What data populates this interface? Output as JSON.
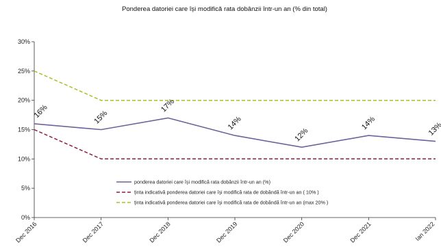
{
  "chart_data": {
    "type": "line",
    "title": "Ponderea datoriei care își modifică rata dobânzii într-un an (% din total)",
    "xlabel": "",
    "ylabel": "",
    "categories": [
      "Dec 2016",
      "Dec 2017",
      "Dec 2018",
      "Dec 2019",
      "Dec 2020",
      "Dec 2021",
      "Ian 2022"
    ],
    "ylim": [
      0,
      30
    ],
    "yticks": [
      "0%",
      "5%",
      "10%",
      "15%",
      "20%",
      "25%",
      "30%"
    ],
    "grid": false,
    "legend_position": "bottom-left",
    "series": [
      {
        "name": "ponderea datoriei care își modifică rata dobânzii într-un an (%)",
        "values": [
          16,
          15,
          17,
          14,
          12,
          14,
          13
        ],
        "data_labels": [
          "16%",
          "15%",
          "17%",
          "14%",
          "12%",
          "14%",
          "13%"
        ],
        "color": "#6b6399",
        "style": "solid"
      },
      {
        "name": "ținta indicativă ponderea datoriei  care își modifică rata de dobândă într-un an ( 10% )",
        "values": [
          15,
          10,
          10,
          10,
          10,
          10,
          10
        ],
        "color": "#8b1a4a",
        "style": "dashed"
      },
      {
        "name": "ținta indicativă ponderea datoriei care își modifică rata de dobândă într-un an (max 20% )",
        "values": [
          25,
          20,
          20,
          20,
          20,
          20,
          20
        ],
        "color": "#a3c12a",
        "style": "dashed"
      }
    ]
  }
}
